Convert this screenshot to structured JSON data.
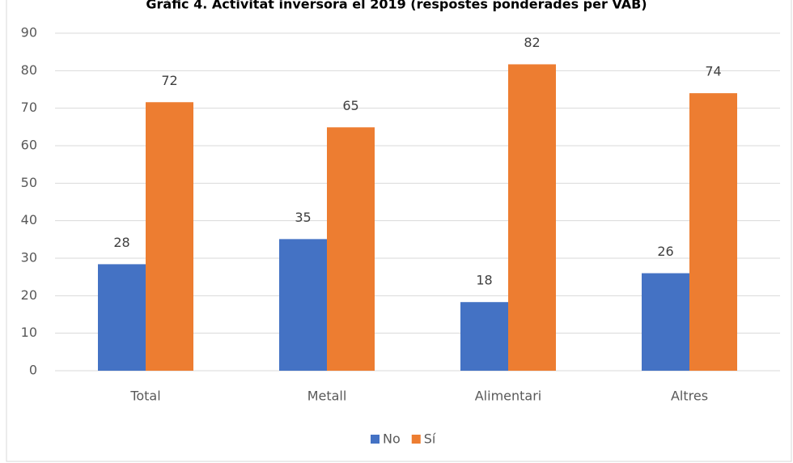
{
  "chart_data": {
    "type": "bar",
    "title": "Gràfic 4. Activitat inversora el 2019 (respostes ponderades per VAB)",
    "categories": [
      "Total",
      "Metall",
      "Alimentari",
      "Altres"
    ],
    "series": [
      {
        "name": "No",
        "color": "#4472c4",
        "values": [
          28.4,
          35.1,
          18.3,
          26
        ],
        "value_labels": [
          "28",
          "35",
          "18",
          "26"
        ]
      },
      {
        "name": "Sí",
        "color": "#ed7d31",
        "values": [
          71.6,
          64.9,
          81.7,
          74
        ],
        "value_labels": [
          "72",
          "65",
          "82",
          "74"
        ]
      }
    ],
    "ylim": [
      0,
      90
    ],
    "yticks": [
      0,
      10,
      20,
      30,
      40,
      50,
      60,
      70,
      80,
      90
    ],
    "grid": true,
    "legend": "bottom"
  }
}
